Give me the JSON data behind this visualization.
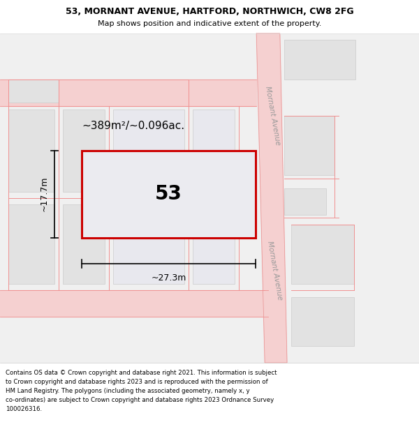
{
  "title_line1": "53, MORNANT AVENUE, HARTFORD, NORTHWICH, CW8 2FG",
  "title_line2": "Map shows position and indicative extent of the property.",
  "footer_lines": [
    "Contains OS data © Crown copyright and database right 2021. This information is subject",
    "to Crown copyright and database rights 2023 and is reproduced with the permission of",
    "HM Land Registry. The polygons (including the associated geometry, namely x, y",
    "co-ordinates) are subject to Crown copyright and database rights 2023 Ordnance Survey",
    "100026316."
  ],
  "plot_label": "53",
  "area_label": "~389m²/~0.096ac.",
  "width_label": "~27.3m",
  "height_label": "~17.7m",
  "road_label": "Mornant Avenue",
  "title_fontsize": 9,
  "subtitle_fontsize": 8,
  "footer_fontsize": 6.2,
  "map_bg": "#f0f0f0",
  "road_fill": "#f5d0d0",
  "road_line": "#e89090",
  "build_fill": "#e2e2e2",
  "plot_fill": "#ebebf0",
  "plot_edge": "#cc0000",
  "pink_line": "#f09090",
  "title_bg": "#ffffff",
  "footer_bg": "#ffffff"
}
